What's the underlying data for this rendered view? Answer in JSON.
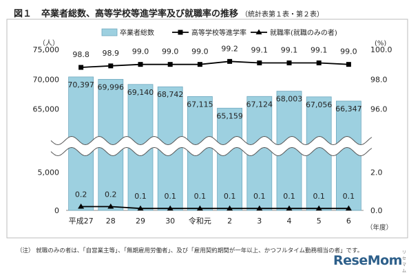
{
  "title": {
    "number": "図１",
    "main": "卒業者総数、高等学校等進学率及び就職率の推移",
    "sub": "（統計表第１表・第２表）"
  },
  "note": "（注） 就職のみの者は、「自営業主等」、「無期雇用労働者」、及び「雇用契約期間が一年以上、かつフルタイム勤務相当の者」です。",
  "logo": "ReseMom",
  "chart_data": {
    "type": "bar+line",
    "categories": [
      "平成27",
      "28",
      "29",
      "30",
      "令和元",
      "2",
      "3",
      "4",
      "5",
      "6"
    ],
    "x_unit": "（年度）",
    "legend": [
      {
        "label": "卒業者総数",
        "kind": "bar",
        "color": "#9dd0e0"
      },
      {
        "label": "高等学校等進学率",
        "kind": "line-square",
        "color": "#000000"
      },
      {
        "label": "就職率(就職のみの者)",
        "kind": "line-triangle",
        "color": "#000000"
      }
    ],
    "bars": {
      "values": [
        70397,
        69996,
        69140,
        68742,
        67115,
        65159,
        67124,
        68003,
        67056,
        66347
      ],
      "labels": [
        "70,397",
        "69,996",
        "69,140",
        "68,742",
        "67,115",
        "65,159",
        "67,124",
        "68,003",
        "67,056",
        "66,347"
      ]
    },
    "advancement_rate": {
      "values": [
        98.8,
        98.9,
        99.0,
        99.0,
        99.0,
        99.2,
        99.1,
        99.1,
        99.1,
        99.0
      ],
      "labels": [
        "98.8",
        "98.9",
        "99.0",
        "99.0",
        "99.0",
        "99.2",
        "99.1",
        "99.1",
        "99.1",
        "99.0"
      ]
    },
    "employment_rate": {
      "values": [
        0.2,
        0.2,
        0.1,
        0.1,
        0.1,
        0.1,
        0.1,
        0.1,
        0.1,
        0.1
      ],
      "labels": [
        "0.2",
        "0.2",
        "0.1",
        "0.1",
        "0.1",
        "0.1",
        "0.1",
        "0.1",
        "0.1",
        "0.1"
      ]
    },
    "left_axis": {
      "unit": "（人）",
      "upper_ticks": [
        "75,000",
        "70,000",
        "65,000"
      ],
      "lower_ticks": [
        "5,000",
        "0"
      ],
      "upper_range": [
        60000,
        75000
      ],
      "lower_range": [
        0,
        7500
      ]
    },
    "right_axis": {
      "unit": "(%)",
      "upper_ticks": [
        "100.0",
        "98.0",
        "96.0"
      ],
      "lower_ticks": [
        "2.0",
        "0.0"
      ],
      "upper_range": [
        94.0,
        100.0
      ],
      "lower_range": [
        0.0,
        3.0
      ]
    },
    "axis_break": true,
    "grid": false,
    "legend_position": "top"
  }
}
